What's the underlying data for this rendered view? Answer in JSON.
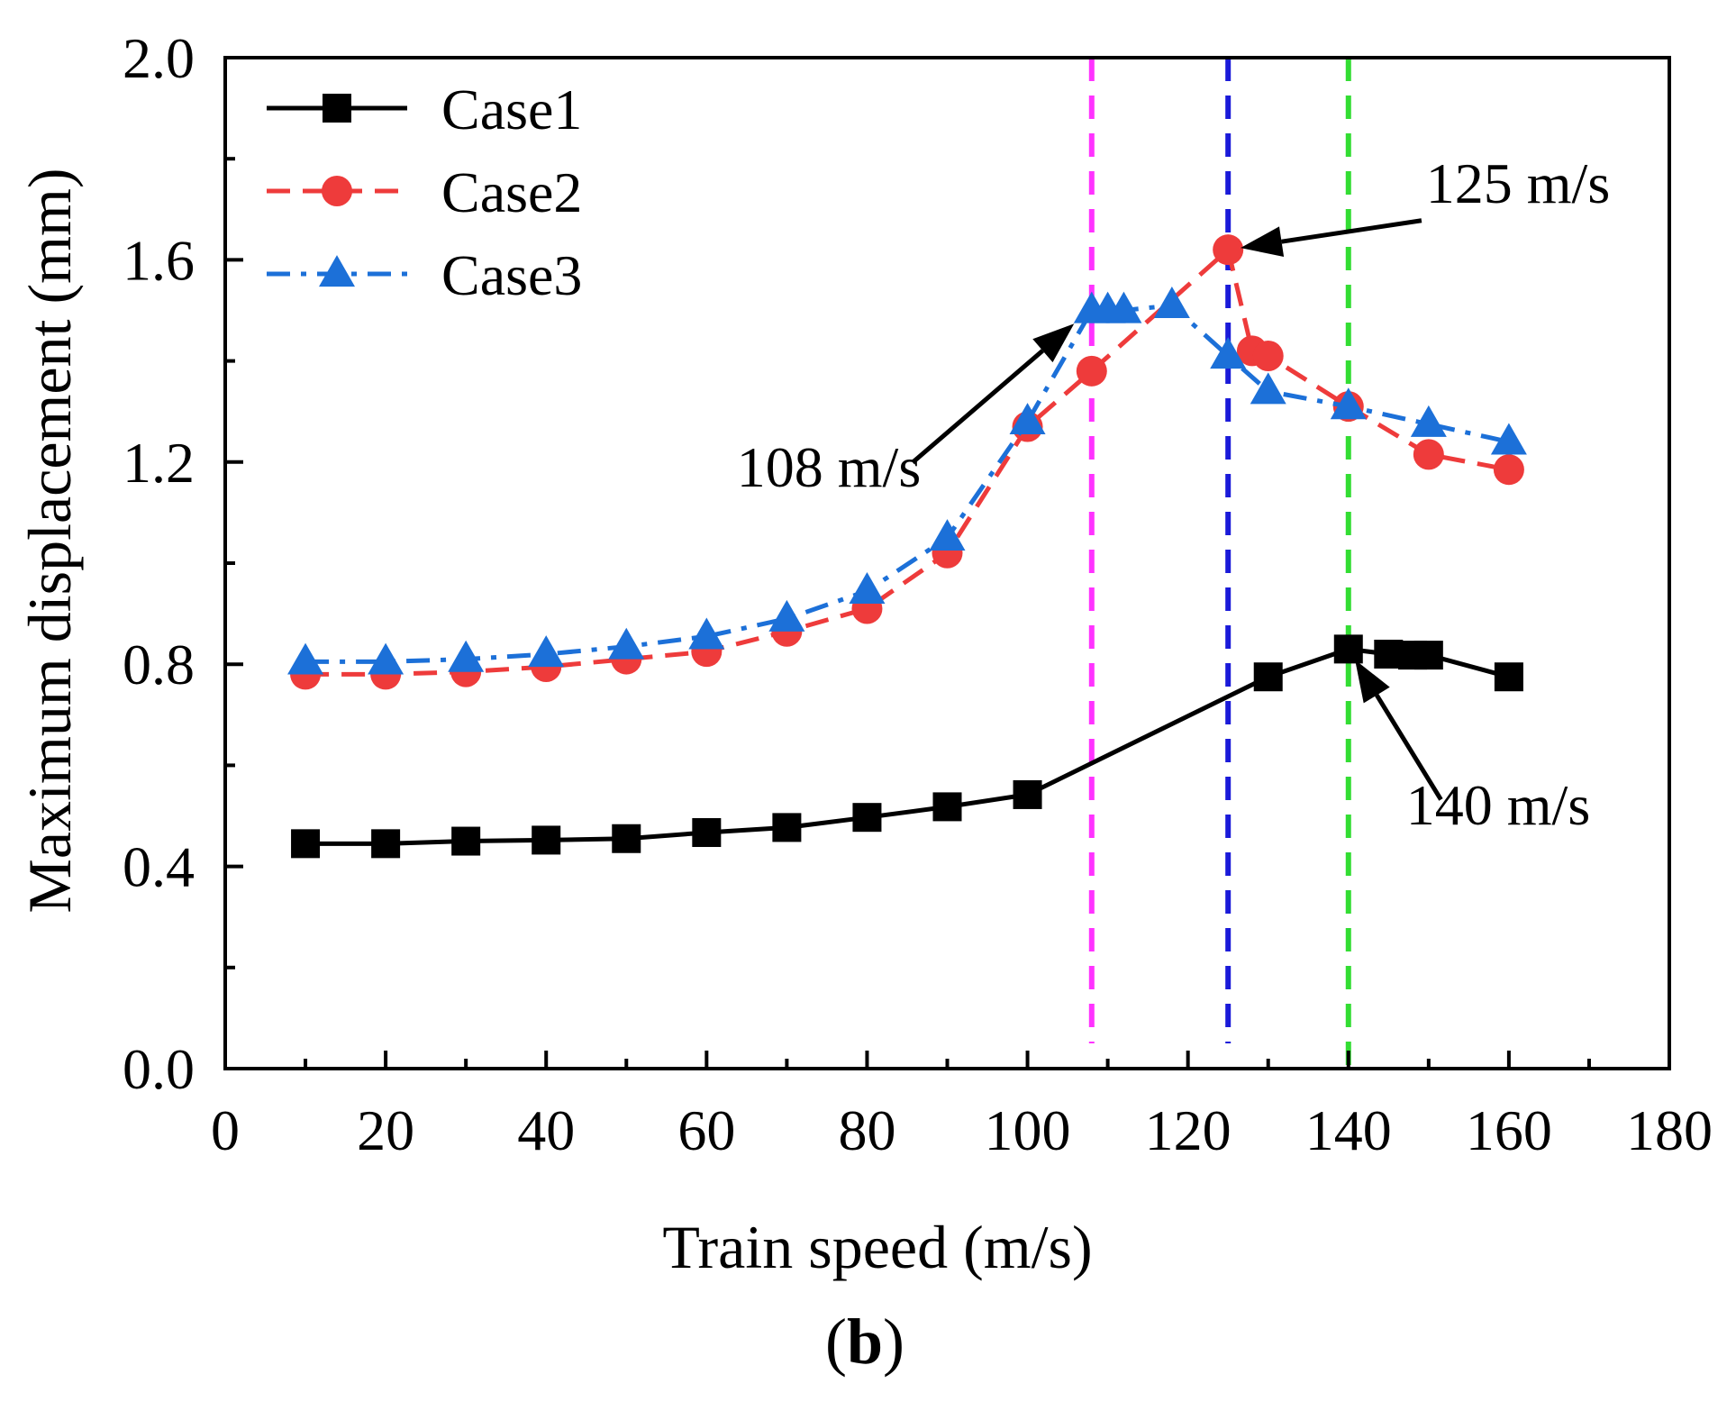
{
  "chart_data": {
    "type": "line",
    "xlabel": "Train speed (m/s)",
    "ylabel": "Maximum displacement (mm)",
    "xlim": [
      0,
      180
    ],
    "ylim": [
      0.0,
      2.0
    ],
    "x_ticks": [
      0,
      20,
      40,
      60,
      80,
      100,
      120,
      140,
      160,
      180
    ],
    "x_tick_labels": [
      "0",
      "20",
      "40",
      "60",
      "80",
      "100",
      "120",
      "140",
      "160",
      "180"
    ],
    "y_ticks": [
      0.0,
      0.4,
      0.8,
      1.2,
      1.6,
      2.0
    ],
    "y_tick_labels": [
      "0.0",
      "0.4",
      "0.8",
      "1.2",
      "1.6",
      "2.0"
    ],
    "grid": false,
    "legend_position": "top-left",
    "series": [
      {
        "name": "Case1",
        "color": "#000000",
        "line_style": "solid",
        "marker": "square",
        "x": [
          10,
          20,
          30,
          40,
          50,
          60,
          70,
          80,
          90,
          100,
          130,
          140,
          145,
          148,
          150,
          160
        ],
        "y": [
          0.445,
          0.445,
          0.45,
          0.452,
          0.455,
          0.467,
          0.477,
          0.497,
          0.518,
          0.542,
          0.775,
          0.83,
          0.82,
          0.818,
          0.818,
          0.775
        ]
      },
      {
        "name": "Case2",
        "color": "#ee3b3b",
        "line_style": "dashed",
        "marker": "circle",
        "x": [
          10,
          20,
          30,
          40,
          50,
          60,
          70,
          80,
          90,
          100,
          108,
          125,
          128,
          130,
          140,
          150,
          160
        ],
        "y": [
          0.78,
          0.78,
          0.785,
          0.795,
          0.81,
          0.825,
          0.865,
          0.91,
          1.02,
          1.27,
          1.38,
          1.62,
          1.42,
          1.41,
          1.31,
          1.215,
          1.185
        ]
      },
      {
        "name": "Case3",
        "color": "#1c70d8",
        "line_style": "dashdot",
        "marker": "triangle",
        "x": [
          10,
          20,
          30,
          40,
          50,
          60,
          70,
          80,
          90,
          100,
          108,
          110,
          112,
          118,
          125,
          130,
          140,
          150,
          160
        ],
        "y": [
          0.805,
          0.805,
          0.81,
          0.82,
          0.835,
          0.855,
          0.89,
          0.945,
          1.05,
          1.28,
          1.5,
          1.5,
          1.5,
          1.51,
          1.41,
          1.34,
          1.31,
          1.275,
          1.24
        ]
      }
    ],
    "vertical_lines": [
      {
        "x": 108,
        "color": "#ff33ff",
        "y_from": 0.05,
        "y_to": 2.0
      },
      {
        "x": 125,
        "color": "#1a1ad9",
        "y_from": 0.05,
        "y_to": 2.0
      },
      {
        "x": 140,
        "color": "#33dd33",
        "y_from": 0.0,
        "y_to": 2.0
      }
    ],
    "annotations": [
      {
        "text": "125 m/s",
        "point": [
          125,
          1.62
        ],
        "text_at": [
          150,
          1.68
        ]
      },
      {
        "text": "108 m/s",
        "point": [
          107,
          1.49
        ],
        "text_at": [
          85,
          1.19
        ]
      },
      {
        "text": "140 m/s",
        "point": [
          140,
          0.83
        ],
        "text_at": [
          152,
          0.52
        ]
      }
    ],
    "panel_label": {
      "open": "(",
      "letter": "b",
      "close": ")"
    }
  }
}
